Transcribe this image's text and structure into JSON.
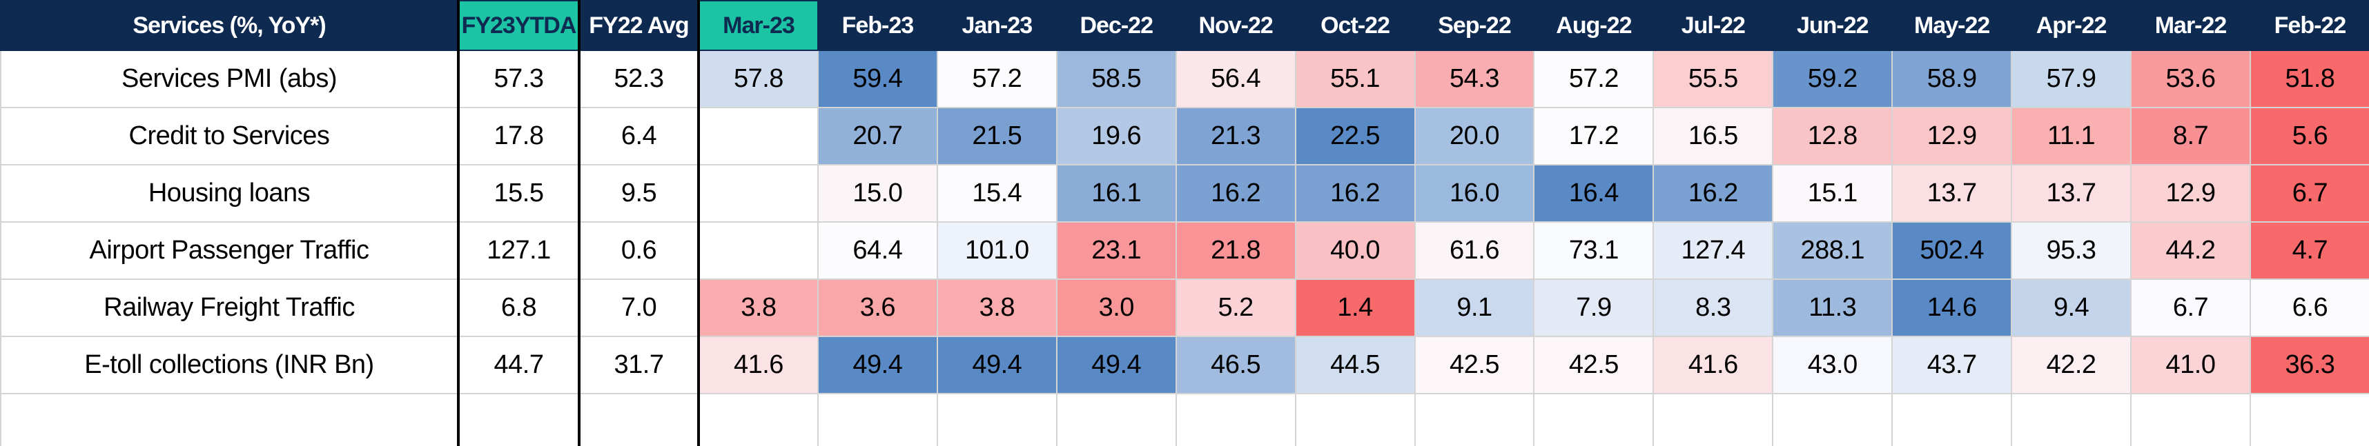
{
  "table": {
    "header": [
      "Services (%, YoY*)",
      "FY23YTDA",
      "FY22 Avg",
      "Mar-23",
      "Feb-23",
      "Jan-23",
      "Dec-22",
      "Nov-22",
      "Oct-22",
      "Sep-22",
      "Aug-22",
      "Jul-22",
      "Jun-22",
      "May-22",
      "Apr-22",
      "Mar-22",
      "Feb-22"
    ],
    "rows": [
      [
        "Services PMI (abs)",
        "57.3",
        "52.3",
        "57.8",
        "59.4",
        "57.2",
        "58.5",
        "56.4",
        "55.1",
        "54.3",
        "57.2",
        "55.5",
        "59.2",
        "58.9",
        "57.9",
        "53.6",
        "51.8"
      ],
      [
        "Credit to Services",
        "17.8",
        "6.4",
        null,
        "20.7",
        "21.5",
        "19.6",
        "21.3",
        "22.5",
        "20.0",
        "17.2",
        "16.5",
        "12.8",
        "12.9",
        "11.1",
        "8.7",
        "5.6"
      ],
      [
        "Housing loans",
        "15.5",
        "9.5",
        null,
        "15.0",
        "15.4",
        "16.1",
        "16.2",
        "16.2",
        "16.0",
        "16.4",
        "16.2",
        "15.1",
        "13.7",
        "13.7",
        "12.9",
        "6.7"
      ],
      [
        "Airport Passenger Traffic",
        "127.1",
        "0.6",
        null,
        "64.4",
        "101.0",
        "23.1",
        "21.8",
        "40.0",
        "61.6",
        "73.1",
        "127.4",
        "288.1",
        "502.4",
        "95.3",
        "44.2",
        "4.7"
      ],
      [
        "Railway Freight Traffic",
        "6.8",
        "7.0",
        "3.8",
        "3.6",
        "3.8",
        "3.0",
        "5.2",
        "1.4",
        "9.1",
        "7.9",
        "8.3",
        "11.3",
        "14.6",
        "9.4",
        "6.7",
        "6.6"
      ],
      [
        "E-toll collections (INR Bn)",
        "44.7",
        "31.7",
        "41.6",
        "49.4",
        "49.4",
        "49.4",
        "46.5",
        "44.5",
        "42.5",
        "42.5",
        "41.6",
        "43.0",
        "43.7",
        "42.2",
        "41.0",
        "36.3"
      ]
    ]
  }
}
